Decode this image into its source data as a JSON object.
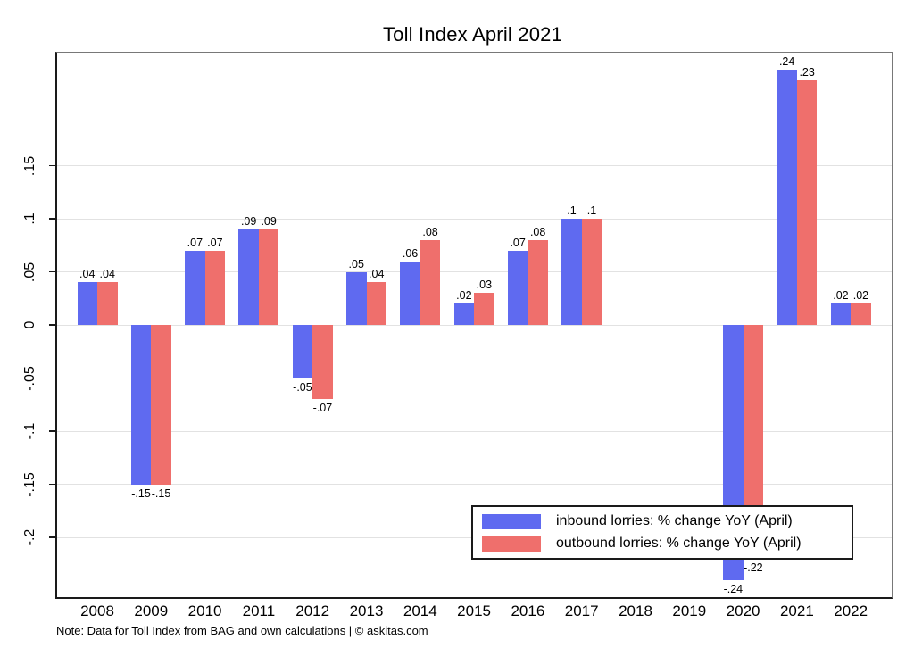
{
  "chart_data": {
    "type": "bar",
    "title": "Toll Index April 2021",
    "categories": [
      "2008",
      "2009",
      "2010",
      "2011",
      "2012",
      "2013",
      "2014",
      "2015",
      "2016",
      "2017",
      "2018",
      "2019",
      "2020",
      "2021",
      "2022"
    ],
    "series": [
      {
        "name": "inbound lorries: % change YoY (April)",
        "color": "#5f6af0",
        "values": [
          0.04,
          -0.15,
          0.07,
          0.09,
          -0.05,
          0.05,
          0.06,
          0.02,
          0.07,
          0.1,
          null,
          null,
          -0.24,
          0.24,
          0.02
        ],
        "labels": [
          ".04",
          "-.15",
          ".07",
          ".09",
          "-.05",
          ".05",
          ".06",
          ".02",
          ".07",
          ".1",
          "",
          "",
          "-.24",
          ".24",
          ".02"
        ]
      },
      {
        "name": "outbound lorries: % change YoY (April)",
        "color": "#ef6f6c",
        "values": [
          0.04,
          -0.15,
          0.07,
          0.09,
          -0.07,
          0.04,
          0.08,
          0.03,
          0.08,
          0.1,
          null,
          null,
          -0.22,
          0.23,
          0.02
        ],
        "labels": [
          ".04",
          "-.15",
          ".07",
          ".09",
          "-.07",
          ".04",
          ".08",
          ".03",
          ".08",
          ".1",
          "",
          "",
          "-.22",
          ".23",
          ".02"
        ]
      }
    ],
    "y_axis": {
      "ticks": [
        0.15,
        0.1,
        0.05,
        0,
        -0.05,
        -0.1,
        -0.15,
        -0.2
      ],
      "tick_labels": [
        ".15",
        ".1",
        ".05",
        "0",
        "-.05",
        "-.1",
        "-.15",
        "-.2"
      ],
      "range": [
        -0.256,
        0.256
      ]
    },
    "grid": true,
    "legend_position": "inside-bottom-right",
    "note": "Note: Data for Toll Index from BAG and own calculations | © askitas.com"
  }
}
